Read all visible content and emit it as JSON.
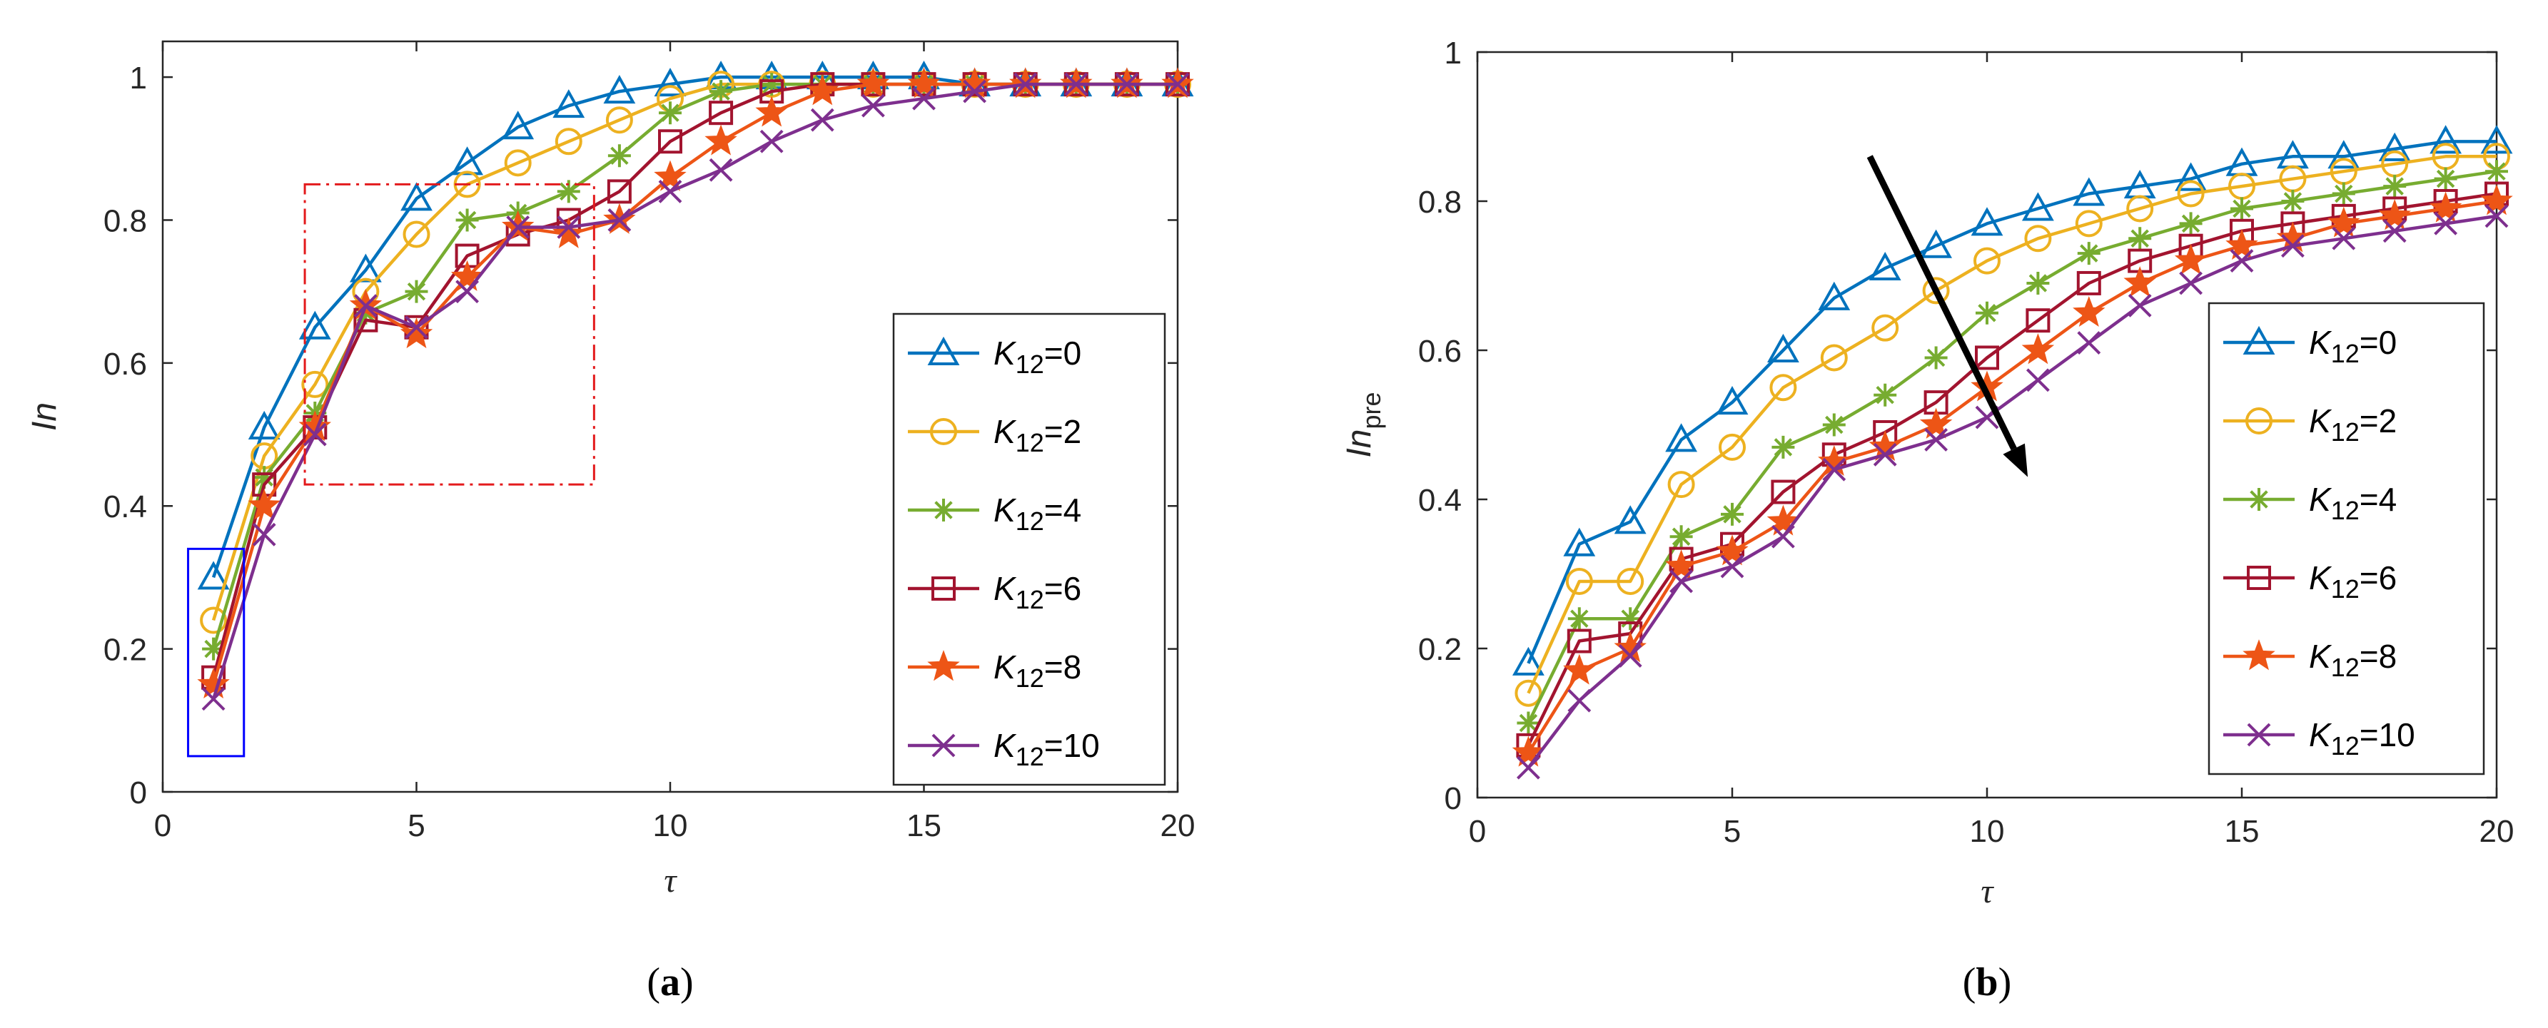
{
  "chart_data": [
    {
      "type": "line",
      "panel_label": "(a)",
      "xlabel": "τ",
      "ylabel": "In",
      "xlim": [
        0,
        20
      ],
      "ylim": [
        0,
        1.05
      ],
      "xticks": [
        0,
        5,
        10,
        15,
        20
      ],
      "yticks": [
        0,
        0.2,
        0.4,
        0.6,
        0.8,
        1
      ],
      "x": [
        1,
        2,
        3,
        4,
        5,
        6,
        7,
        8,
        9,
        10,
        11,
        12,
        13,
        14,
        15,
        16,
        17,
        18,
        19,
        20
      ],
      "series": [
        {
          "name": "K12=0",
          "label_base": "K",
          "label_sub": "12",
          "label_tail": "=0",
          "color": "#0072BD",
          "marker": "triangle",
          "values": [
            0.3,
            0.51,
            0.65,
            0.73,
            0.83,
            0.88,
            0.93,
            0.96,
            0.98,
            0.99,
            1.0,
            1.0,
            1.0,
            1.0,
            1.0,
            0.99,
            0.99,
            0.99,
            0.99,
            0.99
          ]
        },
        {
          "name": "K12=2",
          "label_base": "K",
          "label_sub": "12",
          "label_tail": "=2",
          "color": "#EDB120",
          "marker": "circle",
          "values": [
            0.24,
            0.47,
            0.57,
            0.7,
            0.78,
            0.85,
            0.88,
            0.91,
            0.94,
            0.97,
            0.99,
            0.99,
            0.99,
            0.99,
            0.99,
            0.99,
            0.99,
            0.99,
            0.99,
            0.99
          ]
        },
        {
          "name": "K12=4",
          "label_base": "K",
          "label_sub": "12",
          "label_tail": "=4",
          "color": "#77AC30",
          "marker": "asterisk",
          "values": [
            0.2,
            0.44,
            0.53,
            0.67,
            0.7,
            0.8,
            0.81,
            0.84,
            0.89,
            0.95,
            0.98,
            0.99,
            0.99,
            0.99,
            0.99,
            0.99,
            0.99,
            0.99,
            0.99,
            0.99
          ]
        },
        {
          "name": "K12=6",
          "label_base": "K",
          "label_sub": "12",
          "label_tail": "=6",
          "color": "#A2142F",
          "marker": "square",
          "values": [
            0.16,
            0.43,
            0.51,
            0.66,
            0.65,
            0.75,
            0.78,
            0.8,
            0.84,
            0.91,
            0.95,
            0.98,
            0.99,
            0.99,
            0.99,
            0.99,
            0.99,
            0.99,
            0.99,
            0.99
          ]
        },
        {
          "name": "K12=8",
          "label_base": "K",
          "label_sub": "12",
          "label_tail": "=8",
          "color": "#ED5516",
          "marker": "star",
          "values": [
            0.15,
            0.4,
            0.51,
            0.68,
            0.64,
            0.72,
            0.79,
            0.78,
            0.8,
            0.86,
            0.91,
            0.95,
            0.98,
            0.99,
            0.99,
            0.99,
            0.99,
            0.99,
            0.99,
            0.99
          ]
        },
        {
          "name": "K12=10",
          "label_base": "K",
          "label_sub": "12",
          "label_tail": "=10",
          "color": "#7E2F8E",
          "marker": "x",
          "values": [
            0.13,
            0.36,
            0.5,
            0.68,
            0.65,
            0.7,
            0.79,
            0.79,
            0.8,
            0.84,
            0.87,
            0.91,
            0.94,
            0.96,
            0.97,
            0.98,
            0.99,
            0.99,
            0.99,
            0.99
          ]
        }
      ],
      "annotations": [
        {
          "kind": "rect",
          "style": "solid",
          "color": "#0000FF",
          "x": [
            0.5,
            1.6
          ],
          "y": [
            0.05,
            0.34
          ]
        },
        {
          "kind": "rect",
          "style": "dashdot",
          "color": "#E31A1C",
          "x": [
            2.8,
            8.5
          ],
          "y": [
            0.43,
            0.85
          ]
        }
      ],
      "legend": "bottom-right"
    },
    {
      "type": "line",
      "panel_label": "(b)",
      "xlabel": "τ",
      "ylabel_base": "In",
      "ylabel_sub": "pre",
      "xlim": [
        0,
        20
      ],
      "ylim": [
        0,
        1
      ],
      "xticks": [
        0,
        5,
        10,
        15,
        20
      ],
      "yticks": [
        0,
        0.2,
        0.4,
        0.6,
        0.8,
        1
      ],
      "x": [
        1,
        2,
        3,
        4,
        5,
        6,
        7,
        8,
        9,
        10,
        11,
        12,
        13,
        14,
        15,
        16,
        17,
        18,
        19,
        20
      ],
      "series": [
        {
          "name": "K12=0",
          "label_base": "K",
          "label_sub": "12",
          "label_tail": "=0",
          "color": "#0072BD",
          "marker": "triangle",
          "values": [
            0.18,
            0.34,
            0.37,
            0.48,
            0.53,
            0.6,
            0.67,
            0.71,
            0.74,
            0.77,
            0.79,
            0.81,
            0.82,
            0.83,
            0.85,
            0.86,
            0.86,
            0.87,
            0.88,
            0.88
          ]
        },
        {
          "name": "K12=2",
          "label_base": "K",
          "label_sub": "12",
          "label_tail": "=2",
          "color": "#EDB120",
          "marker": "circle",
          "values": [
            0.14,
            0.29,
            0.29,
            0.42,
            0.47,
            0.55,
            0.59,
            0.63,
            0.68,
            0.72,
            0.75,
            0.77,
            0.79,
            0.81,
            0.82,
            0.83,
            0.84,
            0.85,
            0.86,
            0.86
          ]
        },
        {
          "name": "K12=4",
          "label_base": "K",
          "label_sub": "12",
          "label_tail": "=4",
          "color": "#77AC30",
          "marker": "asterisk",
          "values": [
            0.1,
            0.24,
            0.24,
            0.35,
            0.38,
            0.47,
            0.5,
            0.54,
            0.59,
            0.65,
            0.69,
            0.73,
            0.75,
            0.77,
            0.79,
            0.8,
            0.81,
            0.82,
            0.83,
            0.84
          ]
        },
        {
          "name": "K12=6",
          "label_base": "K",
          "label_sub": "12",
          "label_tail": "=6",
          "color": "#A2142F",
          "marker": "square",
          "values": [
            0.07,
            0.21,
            0.22,
            0.32,
            0.34,
            0.41,
            0.46,
            0.49,
            0.53,
            0.59,
            0.64,
            0.69,
            0.72,
            0.74,
            0.76,
            0.77,
            0.78,
            0.79,
            0.8,
            0.81
          ]
        },
        {
          "name": "K12=8",
          "label_base": "K",
          "label_sub": "12",
          "label_tail": "=8",
          "color": "#ED5516",
          "marker": "star",
          "values": [
            0.06,
            0.17,
            0.2,
            0.31,
            0.33,
            0.37,
            0.45,
            0.47,
            0.5,
            0.55,
            0.6,
            0.65,
            0.69,
            0.72,
            0.74,
            0.75,
            0.77,
            0.78,
            0.79,
            0.8
          ]
        },
        {
          "name": "K12=10",
          "label_base": "K",
          "label_sub": "12",
          "label_tail": "=10",
          "color": "#7E2F8E",
          "marker": "x",
          "values": [
            0.04,
            0.13,
            0.19,
            0.29,
            0.31,
            0.35,
            0.44,
            0.46,
            0.48,
            0.51,
            0.56,
            0.61,
            0.66,
            0.69,
            0.72,
            0.74,
            0.75,
            0.76,
            0.77,
            0.78
          ]
        }
      ],
      "annotations": [
        {
          "kind": "arrow",
          "color": "#000000",
          "from": [
            7.7,
            0.86
          ],
          "to": [
            10.8,
            0.43
          ]
        }
      ],
      "legend": "bottom-right"
    }
  ]
}
